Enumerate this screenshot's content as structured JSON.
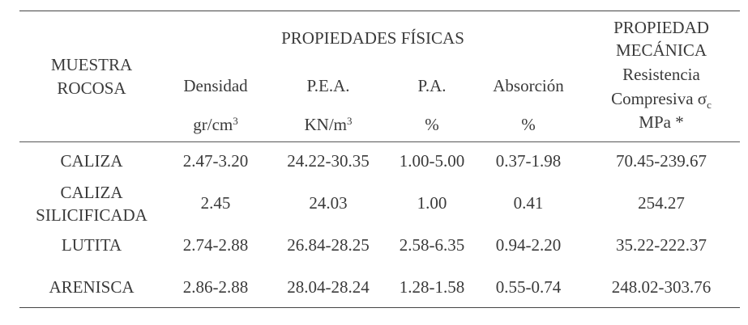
{
  "header": {
    "muestra": [
      "MUESTRA",
      "ROCOSA"
    ],
    "fisicas": "PROPIEDADES FÍSICAS",
    "mecanica": [
      "PROPIEDAD",
      "MECÁNICA"
    ],
    "columns": [
      "Densidad",
      "P.E.A.",
      "P.A.",
      "Absorción"
    ],
    "resistencia": [
      "Resistencia",
      "Compresiva σ",
      "c"
    ],
    "units": {
      "densidad": "gr/cm",
      "densidad_exp": "3",
      "pea": "KN/m",
      "pea_exp": "3",
      "pa": "%",
      "absorcion": "%",
      "resistencia": "MPa *"
    }
  },
  "rows": [
    {
      "muestra": [
        "CALIZA"
      ],
      "densidad": "2.47-3.20",
      "pea": "24.22-30.35",
      "pa": "1.00-5.00",
      "absorcion": "0.37-1.98",
      "resistencia": "70.45-239.67"
    },
    {
      "muestra": [
        "CALIZA",
        "SILICIFICADA"
      ],
      "densidad": "2.45",
      "pea": "24.03",
      "pa": "1.00",
      "absorcion": "0.41",
      "resistencia": "254.27"
    },
    {
      "muestra": [
        "LUTITA"
      ],
      "densidad": "2.74-2.88",
      "pea": "26.84-28.25",
      "pa": "2.58-6.35",
      "absorcion": "0.94-2.20",
      "resistencia": "35.22-222.37"
    },
    {
      "muestra": [
        "ARENISCA"
      ],
      "densidad": "2.86-2.88",
      "pea": "28.04-28.24",
      "pa": "1.28-1.58",
      "absorcion": "0.55-0.74",
      "resistencia": "248.02-303.76"
    }
  ]
}
